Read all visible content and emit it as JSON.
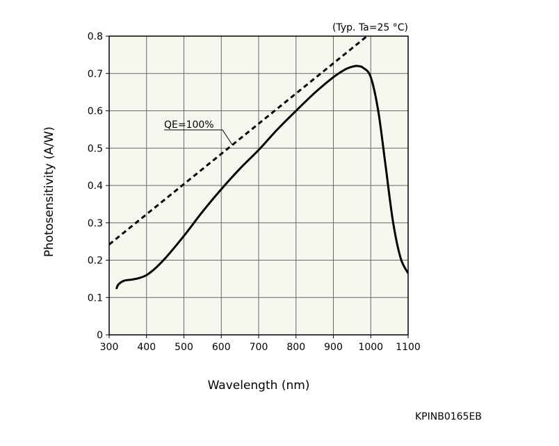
{
  "chart_data": {
    "type": "line",
    "title": "",
    "condition_note": "(Typ. Ta=25 °C)",
    "xlabel": "Wavelength (nm)",
    "ylabel": "Photosensitivity (A/W)",
    "xlim": [
      300,
      1100
    ],
    "ylim": [
      0,
      0.8
    ],
    "x_ticks": [
      300,
      400,
      500,
      600,
      700,
      800,
      900,
      1000,
      1100
    ],
    "x_tick_labels": [
      "300",
      "400",
      "500",
      "600",
      "700",
      "800",
      "900",
      "1000",
      "1100"
    ],
    "y_ticks": [
      0,
      0.1,
      0.2,
      0.3,
      0.4,
      0.5,
      0.6,
      0.7,
      0.8
    ],
    "y_tick_labels": [
      "0",
      "0.1",
      "0.2",
      "0.3",
      "0.4",
      "0.5",
      "0.6",
      "0.7",
      "0.8"
    ],
    "grid": true,
    "series": [
      {
        "style": "solid",
        "x": [
          320,
          325,
          340,
          360,
          380,
          400,
          420,
          450,
          500,
          550,
          600,
          650,
          700,
          750,
          800,
          850,
          900,
          930,
          950,
          965,
          980,
          1000,
          1020,
          1040,
          1060,
          1080,
          1100
        ],
        "y": [
          0.125,
          0.135,
          0.145,
          0.148,
          0.152,
          0.16,
          0.175,
          0.205,
          0.265,
          0.33,
          0.39,
          0.445,
          0.495,
          0.55,
          0.6,
          0.648,
          0.69,
          0.71,
          0.718,
          0.72,
          0.715,
          0.69,
          0.6,
          0.45,
          0.3,
          0.205,
          0.165
        ]
      },
      {
        "name": "QE=100%",
        "style": "dashed",
        "x": [
          300,
          990
        ],
        "y": [
          0.242,
          0.8
        ]
      }
    ],
    "annotations": [
      {
        "text": "QE=100%",
        "points_to_x": 630,
        "points_to_y": 0.508
      }
    ]
  },
  "figure_code": "KPINB0165EB"
}
